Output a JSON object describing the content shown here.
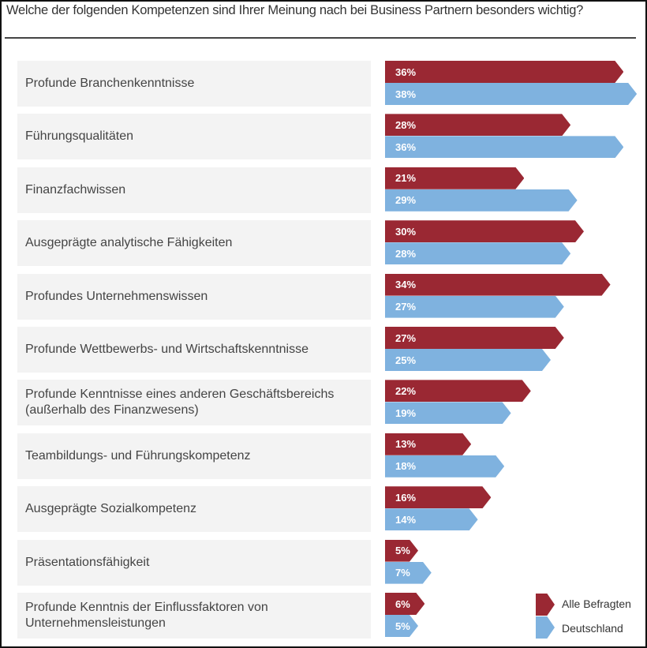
{
  "chart_data": {
    "type": "bar",
    "orientation": "horizontal",
    "title": "Welche der folgenden Kompetenzen sind Ihrer Meinung nach bei Business Partnern besonders wichtig?",
    "unit": "%",
    "categories": [
      "Profunde Branchenkenntnisse",
      "Führungsqualitäten",
      "Finanzfachwissen",
      "Ausgeprägte analytische Fähigkeiten",
      "Profundes Unternehmenswissen",
      "Profunde Wettbewerbs- und Wirtschaftskenntnisse",
      "Profunde Kenntnisse eines anderen Geschäftsbereichs\n(außerhalb des Finanzwesens)",
      "Teambildungs- und Führungskompetenz",
      "Ausgeprägte Sozialkompetenz",
      "Präsentationsfähigkeit",
      "Profunde Kenntnis der Einflussfaktoren von\nUnternehmensleistungen"
    ],
    "series": [
      {
        "name": "Alle Befragten",
        "color": "#9a2833",
        "values": [
          36,
          28,
          21,
          30,
          34,
          27,
          22,
          13,
          16,
          5,
          6
        ]
      },
      {
        "name": "Deutschland",
        "color": "#7fb2df",
        "values": [
          38,
          36,
          29,
          28,
          27,
          25,
          19,
          18,
          14,
          7,
          5
        ]
      }
    ],
    "legend_position": "bottom-right",
    "xlim": [
      0,
      38
    ]
  }
}
